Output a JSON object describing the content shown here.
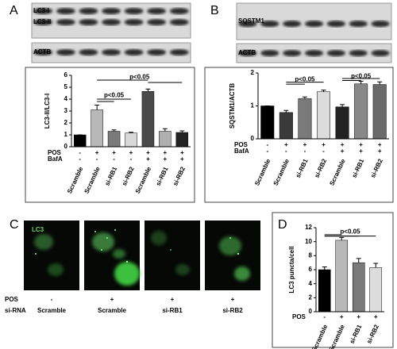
{
  "chart_data": [
    {
      "type": "bar",
      "panel": "A",
      "blot_labels": [
        "LC3-I",
        "LC3-II",
        "ACTB"
      ],
      "ylabel": "LC3-II/LC3-I",
      "categories": [
        "Scramble",
        "Scramble",
        "si-RB1",
        "si-RB2",
        "Scramble",
        "si-RB1",
        "si-RB2"
      ],
      "values": [
        1,
        3.1,
        1.3,
        1.15,
        4.65,
        1.3,
        1.2
      ],
      "errors": [
        0,
        0.4,
        0.12,
        0.07,
        0.2,
        0.22,
        0.13
      ],
      "colors": [
        "#000000",
        "#b8b8b8",
        "#7a7a7a",
        "#d8d8d8",
        "#4a4a4a",
        "#b0b0b0",
        "#222222"
      ],
      "ylim": [
        0,
        6
      ],
      "yticks": [
        0,
        1,
        2,
        3,
        4,
        5,
        6
      ],
      "rows": [
        {
          "name": "POS",
          "values": [
            "-",
            "+",
            "+",
            "+",
            "+",
            "+",
            "+"
          ]
        },
        {
          "name": "BafA",
          "values": [
            "-",
            "-",
            "-",
            "-",
            "+",
            "+",
            "+"
          ]
        }
      ],
      "annotations": [
        "p<0.05",
        "p<0.05"
      ]
    },
    {
      "type": "bar",
      "panel": "B",
      "blot_labels": [
        "SQSTM1",
        "ACTB"
      ],
      "ylabel": "SQSTM1/ACTB",
      "categories": [
        "Scramble",
        "Scramble",
        "si-RB1",
        "si-RB2",
        "Scramble",
        "si-RB1",
        "si-RB2"
      ],
      "values": [
        1,
        0.8,
        1.22,
        1.43,
        0.97,
        1.67,
        1.65
      ],
      "errors": [
        0,
        0.06,
        0.05,
        0.05,
        0.07,
        0.08,
        0.08
      ],
      "colors": [
        "#000000",
        "#3a3a3a",
        "#7a7a7a",
        "#dcdcdc",
        "#222222",
        "#888888",
        "#6a6a6a"
      ],
      "ylim": [
        0,
        2
      ],
      "yticks": [
        0,
        1,
        2
      ],
      "rows": [
        {
          "name": "POS",
          "values": [
            "-",
            "+",
            "+",
            "+",
            "+",
            "+",
            "+"
          ]
        },
        {
          "name": "BafA",
          "values": [
            "-",
            "-",
            "-",
            "-",
            "+",
            "+",
            "+"
          ]
        }
      ],
      "annotations": [
        "p<0.05",
        "p<0.05"
      ]
    },
    {
      "type": "bar",
      "panel": "D",
      "ylabel": "LC3 puncta/cell",
      "categories": [
        "Scramble",
        "Scramble",
        "si-RB1",
        "si-RB2"
      ],
      "values": [
        6,
        10.2,
        7,
        6.3
      ],
      "errors": [
        0.4,
        0.4,
        0.6,
        0.6
      ],
      "colors": [
        "#000000",
        "#b8b8b8",
        "#7a7a7a",
        "#dcdcdc"
      ],
      "ylim": [
        0,
        12
      ],
      "yticks": [
        0,
        2,
        4,
        6,
        8,
        10,
        12
      ],
      "rows": [
        {
          "name": "POS",
          "values": [
            "-",
            "+",
            "+",
            "+"
          ]
        }
      ],
      "annotations": [
        "p<0.05"
      ]
    }
  ],
  "panel_c": {
    "panel": "C",
    "channel_label": "LC3",
    "rows": [
      {
        "name": "POS",
        "values": [
          "-",
          "+",
          "+",
          "+"
        ]
      },
      {
        "name": "si-RNA",
        "values": [
          "Scramble",
          "Scramble",
          "si-RB1",
          "si-RB2"
        ]
      }
    ]
  }
}
